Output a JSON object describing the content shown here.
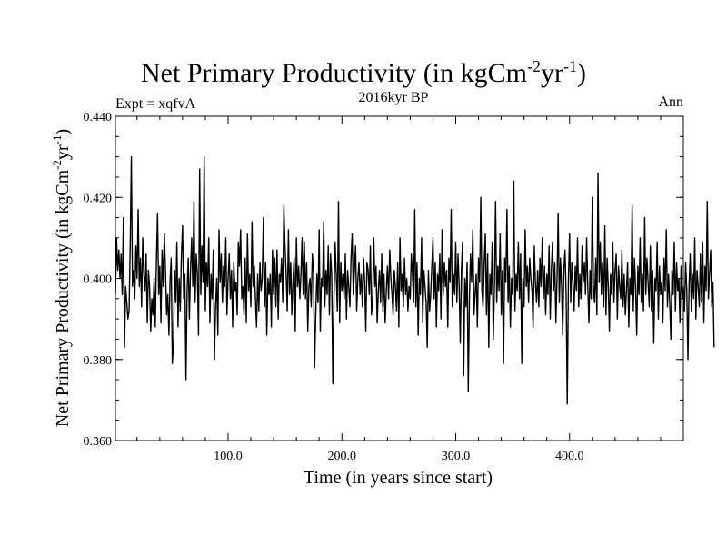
{
  "chart_data": {
    "type": "line",
    "title": {
      "main": "Net Primary Productivity (in kgCm",
      "sup1": "-2",
      "mid": "yr",
      "sup2": "-1",
      "end": ")"
    },
    "subtitle": "2016kyr BP",
    "annotation_left": "Expt = xqfvA",
    "annotation_right": "Ann",
    "xlabel": "Time (in years since start)",
    "ylabel": {
      "main": "Net Primary Productivity (in kgCm",
      "sup1": "-2",
      "mid": "yr",
      "sup2": "-1",
      "end": ")"
    },
    "xlim": [
      1,
      500
    ],
    "ylim": [
      0.36,
      0.44
    ],
    "x_ticks": [
      100,
      200,
      300,
      400
    ],
    "x_tick_labels": [
      "100.0",
      "200.0",
      "300.0",
      "400.0"
    ],
    "y_ticks": [
      0.36,
      0.38,
      0.4,
      0.42,
      0.44
    ],
    "y_tick_labels": [
      "0.360",
      "0.380",
      "0.400",
      "0.420",
      "0.440"
    ],
    "grid": false,
    "series": [
      {
        "name": "Net Primary Productivity",
        "color": "#000000",
        "x_start": 1,
        "x_step": 1,
        "values": [
          0.396,
          0.41,
          0.402,
          0.407,
          0.4,
          0.406,
          0.396,
          0.415,
          0.383,
          0.398,
          0.394,
          0.39,
          0.392,
          0.408,
          0.43,
          0.398,
          0.402,
          0.395,
          0.408,
          0.4,
          0.417,
          0.398,
          0.405,
          0.393,
          0.41,
          0.401,
          0.397,
          0.406,
          0.389,
          0.402,
          0.398,
          0.387,
          0.395,
          0.391,
          0.4,
          0.388,
          0.404,
          0.416,
          0.396,
          0.403,
          0.389,
          0.407,
          0.398,
          0.411,
          0.402,
          0.391,
          0.396,
          0.386,
          0.399,
          0.405,
          0.379,
          0.384,
          0.402,
          0.394,
          0.409,
          0.388,
          0.4,
          0.392,
          0.406,
          0.413,
          0.395,
          0.401,
          0.375,
          0.397,
          0.405,
          0.39,
          0.402,
          0.41,
          0.398,
          0.419,
          0.394,
          0.406,
          0.401,
          0.386,
          0.427,
          0.396,
          0.408,
          0.399,
          0.43,
          0.392,
          0.404,
          0.398,
          0.41,
          0.389,
          0.401,
          0.395,
          0.407,
          0.38,
          0.393,
          0.4,
          0.386,
          0.412,
          0.399,
          0.406,
          0.394,
          0.403,
          0.398,
          0.41,
          0.391,
          0.4,
          0.406,
          0.395,
          0.402,
          0.388,
          0.404,
          0.397,
          0.399,
          0.391,
          0.409,
          0.403,
          0.412,
          0.395,
          0.398,
          0.391,
          0.405,
          0.389,
          0.411,
          0.397,
          0.401,
          0.393,
          0.414,
          0.398,
          0.403,
          0.395,
          0.388,
          0.401,
          0.392,
          0.404,
          0.397,
          0.4,
          0.415,
          0.393,
          0.404,
          0.386,
          0.4,
          0.396,
          0.401,
          0.388,
          0.407,
          0.396,
          0.405,
          0.393,
          0.407,
          0.39,
          0.401,
          0.399,
          0.405,
          0.394,
          0.418,
          0.408,
          0.401,
          0.392,
          0.412,
          0.396,
          0.404,
          0.391,
          0.399,
          0.405,
          0.387,
          0.41,
          0.398,
          0.403,
          0.395,
          0.401,
          0.41,
          0.396,
          0.409,
          0.395,
          0.404,
          0.387,
          0.398,
          0.4,
          0.393,
          0.406,
          0.402,
          0.378,
          0.391,
          0.401,
          0.394,
          0.412,
          0.387,
          0.4,
          0.398,
          0.414,
          0.393,
          0.402,
          0.396,
          0.408,
          0.391,
          0.406,
          0.401,
          0.374,
          0.395,
          0.409,
          0.401,
          0.392,
          0.419,
          0.389,
          0.404,
          0.397,
          0.401,
          0.395,
          0.406,
          0.39,
          0.402,
          0.398,
          0.393,
          0.405,
          0.411,
          0.396,
          0.402,
          0.408,
          0.392,
          0.4,
          0.404,
          0.396,
          0.401,
          0.393,
          0.405,
          0.399,
          0.387,
          0.404,
          0.402,
          0.396,
          0.408,
          0.391,
          0.395,
          0.41,
          0.398,
          0.403,
          0.389,
          0.397,
          0.402,
          0.394,
          0.406,
          0.392,
          0.401,
          0.389,
          0.397,
          0.403,
          0.395,
          0.407,
          0.4,
          0.396,
          0.391,
          0.402,
          0.398,
          0.392,
          0.404,
          0.388,
          0.41,
          0.397,
          0.401,
          0.393,
          0.405,
          0.396,
          0.4,
          0.392,
          0.398,
          0.395,
          0.406,
          0.401,
          0.394,
          0.417,
          0.393,
          0.404,
          0.386,
          0.4,
          0.396,
          0.41,
          0.389,
          0.402,
          0.398,
          0.394,
          0.383,
          0.402,
          0.392,
          0.396,
          0.403,
          0.41,
          0.395,
          0.404,
          0.388,
          0.401,
          0.397,
          0.406,
          0.39,
          0.412,
          0.396,
          0.404,
          0.398,
          0.402,
          0.388,
          0.405,
          0.399,
          0.417,
          0.393,
          0.401,
          0.396,
          0.409,
          0.394,
          0.406,
          0.398,
          0.384,
          0.402,
          0.409,
          0.376,
          0.4,
          0.393,
          0.404,
          0.372,
          0.395,
          0.406,
          0.399,
          0.412,
          0.391,
          0.396,
          0.401,
          0.388,
          0.405,
          0.399,
          0.42,
          0.397,
          0.393,
          0.404,
          0.411,
          0.391,
          0.406,
          0.383,
          0.401,
          0.396,
          0.409,
          0.385,
          0.398,
          0.419,
          0.394,
          0.403,
          0.397,
          0.411,
          0.391,
          0.402,
          0.379,
          0.405,
          0.399,
          0.417,
          0.394,
          0.403,
          0.388,
          0.4,
          0.396,
          0.424,
          0.392,
          0.401,
          0.397,
          0.409,
          0.395,
          0.406,
          0.379,
          0.4,
          0.393,
          0.412,
          0.398,
          0.403,
          0.394,
          0.405,
          0.4,
          0.397,
          0.388,
          0.408,
          0.399,
          0.394,
          0.402,
          0.393,
          0.405,
          0.398,
          0.41,
          0.395,
          0.403,
          0.391,
          0.401,
          0.396,
          0.408,
          0.39,
          0.402,
          0.409,
          0.397,
          0.404,
          0.389,
          0.4,
          0.416,
          0.394,
          0.405,
          0.398,
          0.386,
          0.402,
          0.407,
          0.396,
          0.369,
          0.4,
          0.411,
          0.394,
          0.404,
          0.399,
          0.392,
          0.403,
          0.397,
          0.41,
          0.393,
          0.401,
          0.395,
          0.408,
          0.399,
          0.404,
          0.396,
          0.41,
          0.398,
          0.389,
          0.402,
          0.395,
          0.42,
          0.398,
          0.394,
          0.405,
          0.391,
          0.426,
          0.399,
          0.409,
          0.396,
          0.404,
          0.393,
          0.413,
          0.391,
          0.405,
          0.398,
          0.387,
          0.401,
          0.396,
          0.409,
          0.394,
          0.402,
          0.406,
          0.39,
          0.403,
          0.398,
          0.395,
          0.407,
          0.393,
          0.401,
          0.391,
          0.397,
          0.404,
          0.388,
          0.4,
          0.396,
          0.418,
          0.392,
          0.405,
          0.398,
          0.386,
          0.403,
          0.396,
          0.41,
          0.394,
          0.401,
          0.392,
          0.415,
          0.396,
          0.405,
          0.399,
          0.393,
          0.408,
          0.392,
          0.402,
          0.384,
          0.4,
          0.397,
          0.409,
          0.39,
          0.403,
          0.396,
          0.399,
          0.389,
          0.405,
          0.397,
          0.412,
          0.393,
          0.401,
          0.394,
          0.385,
          0.402,
          0.396,
          0.409,
          0.392,
          0.404,
          0.397,
          0.4,
          0.389,
          0.403,
          0.395,
          0.398,
          0.392,
          0.404,
          0.397,
          0.38,
          0.398,
          0.406,
          0.392,
          0.401,
          0.395,
          0.41,
          0.39,
          0.402,
          0.398,
          0.393,
          0.406,
          0.394,
          0.409,
          0.389,
          0.403,
          0.397,
          0.419,
          0.395,
          0.401,
          0.407,
          0.393,
          0.399,
          0.383
        ]
      }
    ]
  }
}
